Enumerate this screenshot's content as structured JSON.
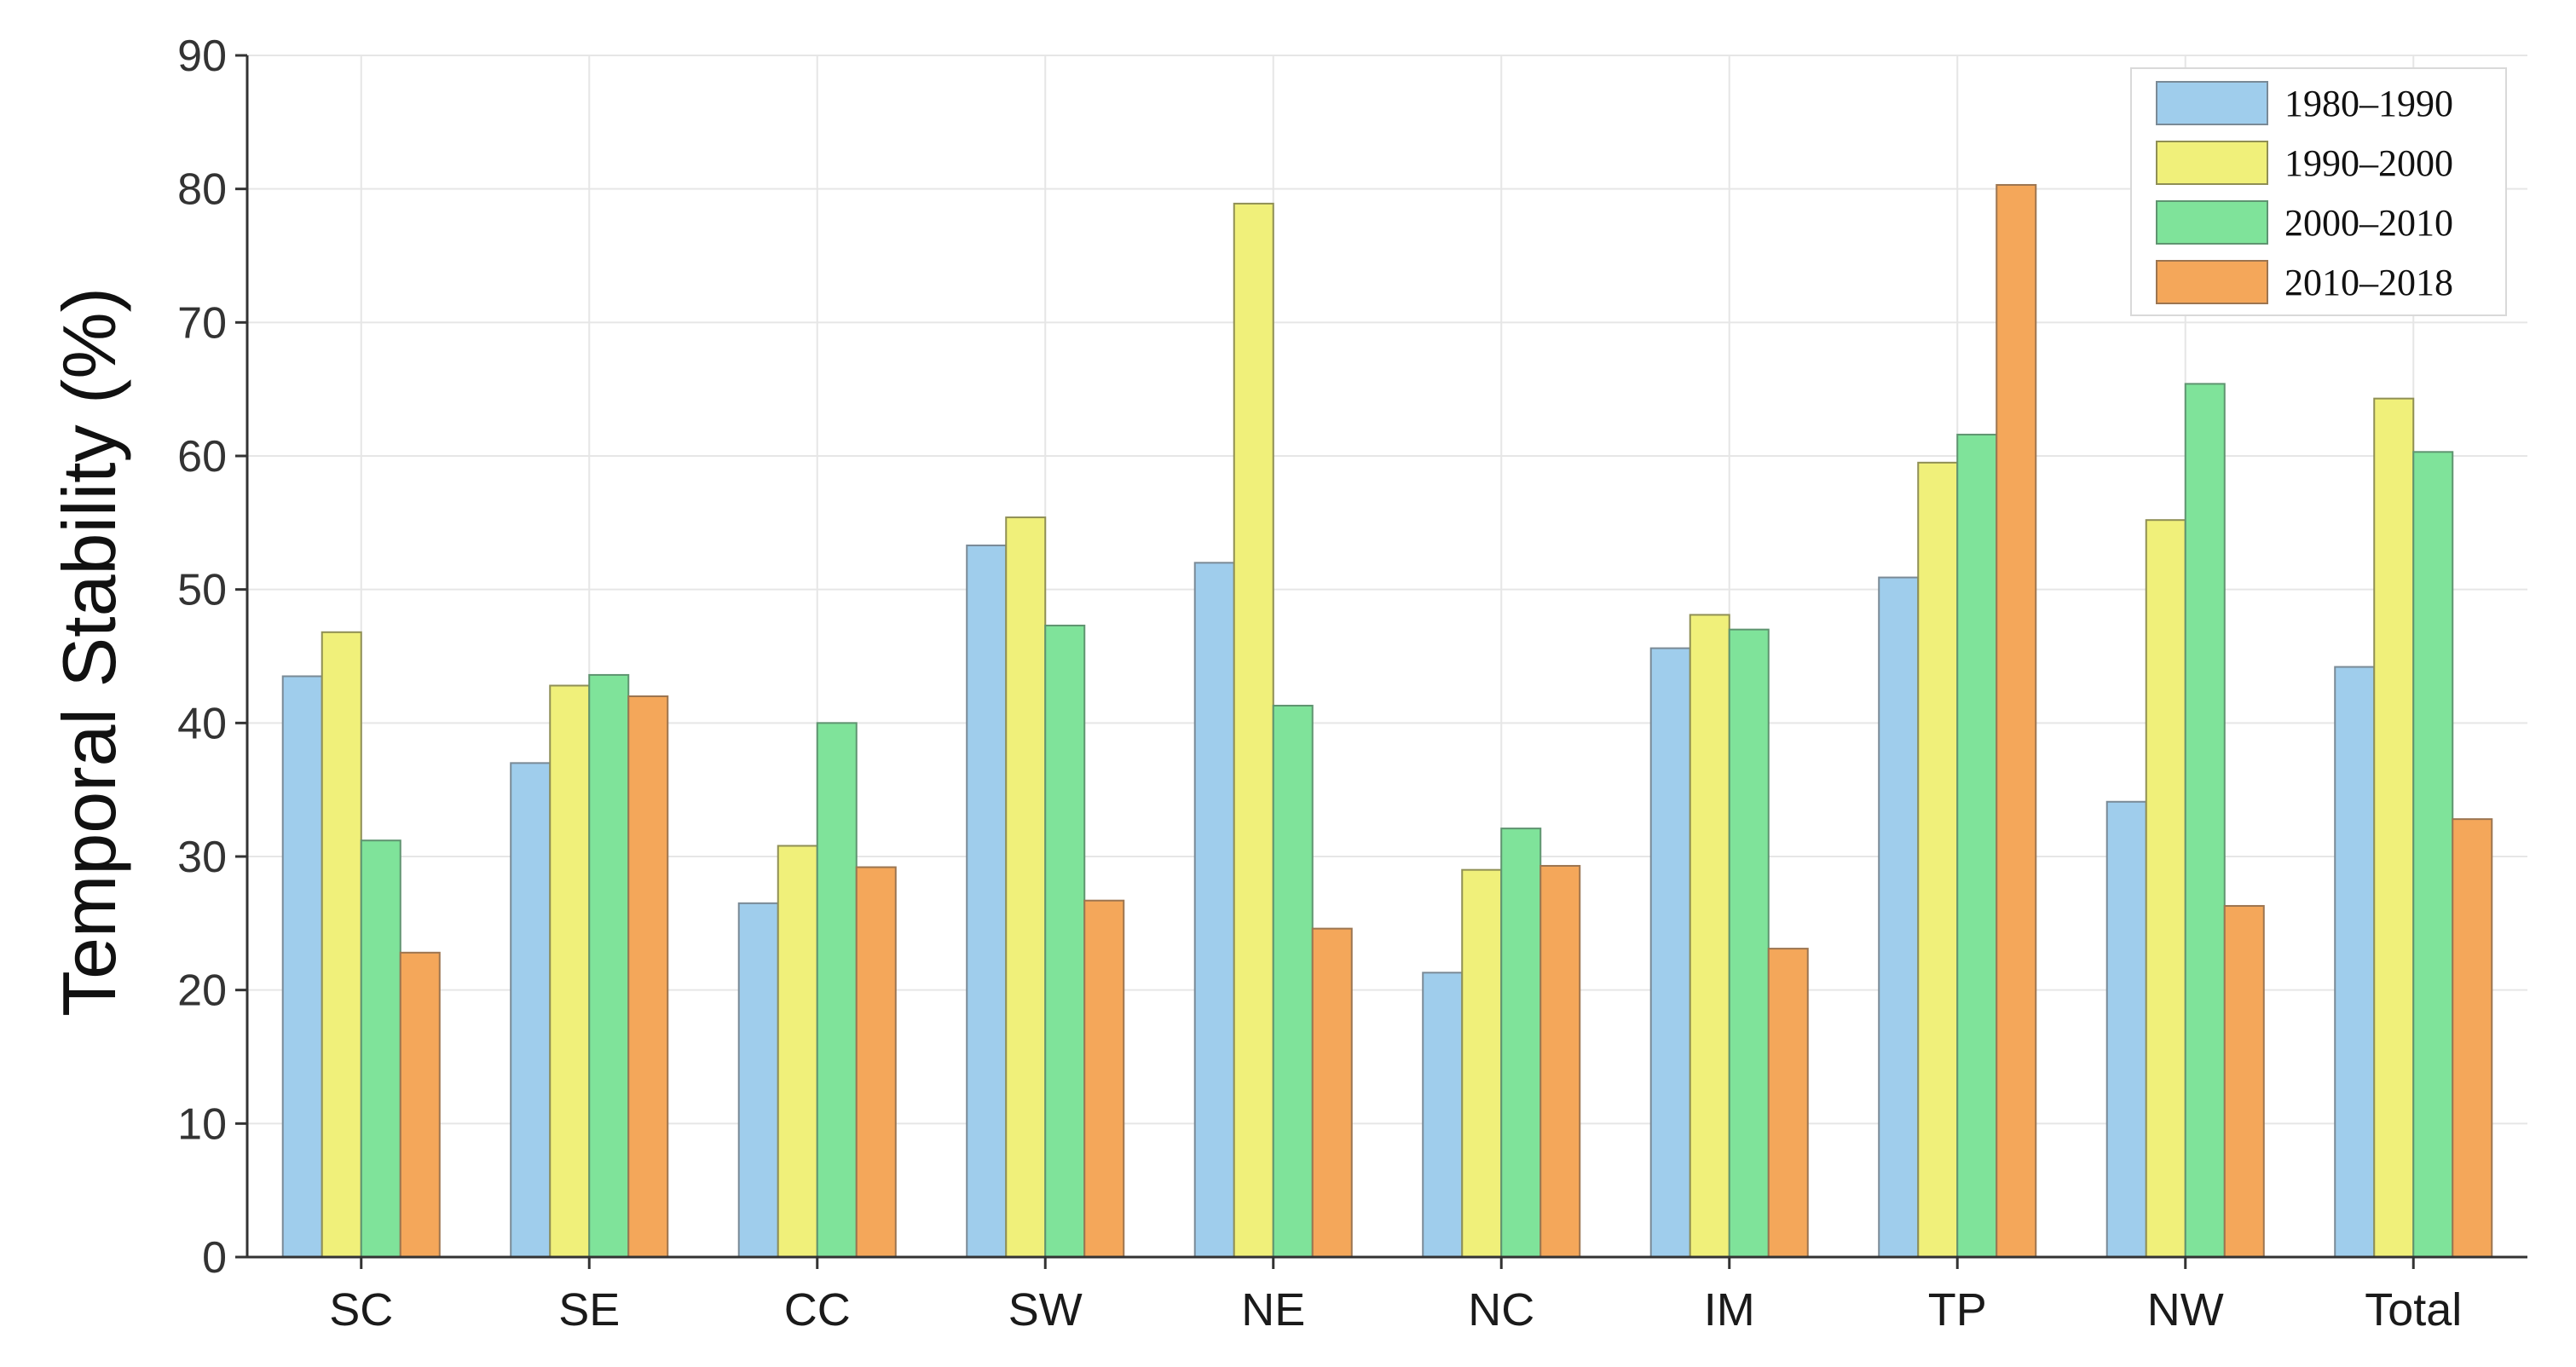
{
  "chart_data": {
    "type": "bar",
    "title": "",
    "xlabel": "",
    "ylabel": "Temporal Stability (%)",
    "ylim": [
      0,
      90
    ],
    "yticks": [
      0,
      10,
      20,
      30,
      40,
      50,
      60,
      70,
      80,
      90
    ],
    "grid": true,
    "legend_position": "top-right",
    "categories": [
      "SC",
      "SE",
      "CC",
      "SW",
      "NE",
      "NC",
      "IM",
      "TP",
      "NW",
      "Total"
    ],
    "series": [
      {
        "name": "1980–1990",
        "color": "#9fcdec",
        "values": [
          43.5,
          37.0,
          26.5,
          53.3,
          52.0,
          21.3,
          45.6,
          50.9,
          34.1,
          44.2
        ]
      },
      {
        "name": "1990–2000",
        "color": "#f0f07a",
        "values": [
          46.8,
          42.8,
          30.8,
          55.4,
          78.9,
          29.0,
          48.1,
          59.5,
          55.2,
          64.3
        ]
      },
      {
        "name": "2000–2010",
        "color": "#7fe39a",
        "values": [
          31.2,
          43.6,
          40.0,
          47.3,
          41.3,
          32.1,
          47.0,
          61.6,
          65.4,
          60.3
        ]
      },
      {
        "name": "2010–2018",
        "color": "#f4a75a",
        "values": [
          22.8,
          42.0,
          29.2,
          26.7,
          24.6,
          29.3,
          23.1,
          80.3,
          26.3,
          32.8
        ]
      }
    ]
  }
}
